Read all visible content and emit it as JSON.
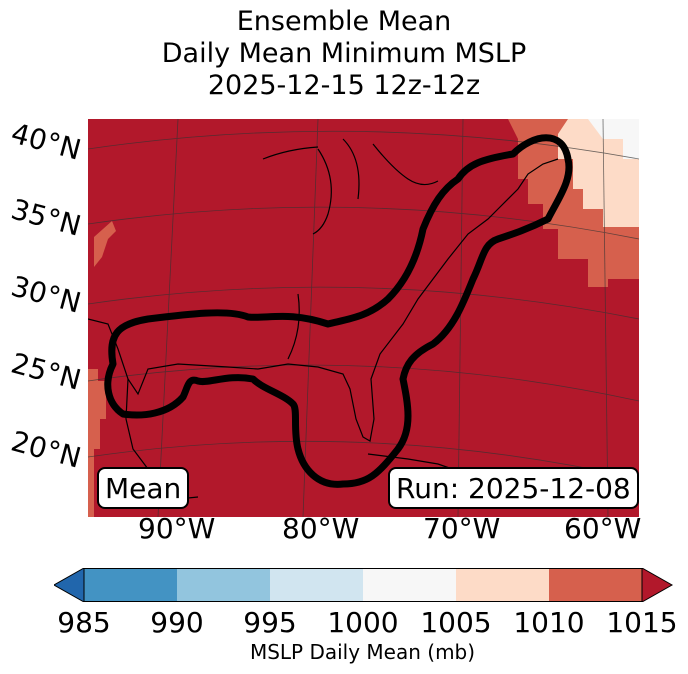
{
  "title": {
    "line1": "Ensemble Mean",
    "line2": "Daily Mean Minimum MSLP",
    "line3": "2025-12-15 12z-12z"
  },
  "lat_labels": [
    "40°N",
    "35°N",
    "30°N",
    "25°N",
    "20°N"
  ],
  "lon_labels": [
    "90°W",
    "80°W",
    "70°W",
    "60°W"
  ],
  "badges": {
    "left": "Mean",
    "right": "Run: 2025-12-08"
  },
  "colorbar": {
    "ticks": [
      "985",
      "990",
      "995",
      "1000",
      "1005",
      "1010",
      "1015"
    ],
    "label": "MSLP Daily Mean (mb)",
    "colors": {
      "below": "#2166ac",
      "985-990": "#4393c3",
      "990-995": "#92c5de",
      "995-1000": "#d1e5f0",
      "1000-1005": "#f7f7f7",
      "1005-1010": "#fddbc7",
      "1010-1015": "#d6604d",
      "above": "#b2182b"
    }
  },
  "map_colors": {
    "field": "#b2182b",
    "field_low": "#d6604d",
    "field_lowest": "#fddbc7",
    "contour": "#000000"
  }
}
